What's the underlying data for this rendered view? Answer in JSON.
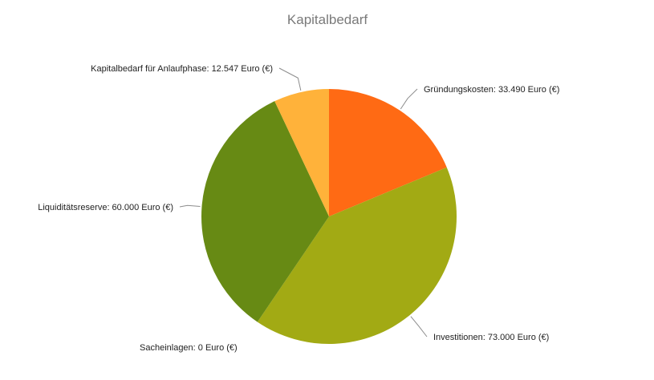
{
  "chart_data": {
    "type": "pie",
    "title": "Kapitalbedarf",
    "slices": [
      {
        "label": "Gründungskosten: 33.490 Euro (€)",
        "name": "Gründungskosten",
        "value": 33490,
        "color": "#FF6A14"
      },
      {
        "label": "Investitionen: 73.000 Euro (€)",
        "name": "Investitionen",
        "value": 73000,
        "color": "#A2AA14"
      },
      {
        "label": "Sacheinlagen: 0 Euro (€)",
        "name": "Sacheinlagen",
        "value": 0,
        "color": "#C9C9C9"
      },
      {
        "label": "Liquiditätsreserve: 60.000 Euro (€)",
        "name": "Liquiditätsreserve",
        "value": 60000,
        "color": "#678A14"
      },
      {
        "label": "Kapitalbedarf für Anlaufphase: 12.547 Euro (€)",
        "name": "Kapitalbedarf für Anlaufphase",
        "value": 12547,
        "color": "#FFB23A"
      }
    ]
  }
}
